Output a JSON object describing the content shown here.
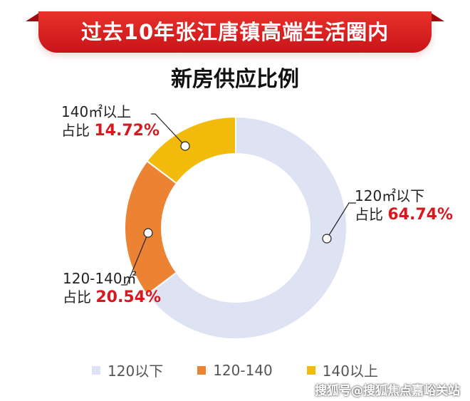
{
  "banner": {
    "title": "过去10年张江唐镇高端生活圈内"
  },
  "chart_data": {
    "type": "pie",
    "donut": true,
    "title": "新房供应比例",
    "series": [
      {
        "name": "120以下",
        "label": "120㎡以下",
        "value": 64.74,
        "value_text": "64.74%",
        "color": "#dde3f2"
      },
      {
        "name": "120-140",
        "label": "120-140㎡",
        "value": 20.54,
        "value_text": "20.54%",
        "color": "#ec8333"
      },
      {
        "name": "140以上",
        "label": "140㎡以上",
        "value": 14.72,
        "value_text": "14.72%",
        "color": "#f2bb0b"
      }
    ],
    "share_prefix": "占比",
    "legend_position": "bottom"
  },
  "watermark": "搜狐号@搜狐焦点嘉峪关站"
}
